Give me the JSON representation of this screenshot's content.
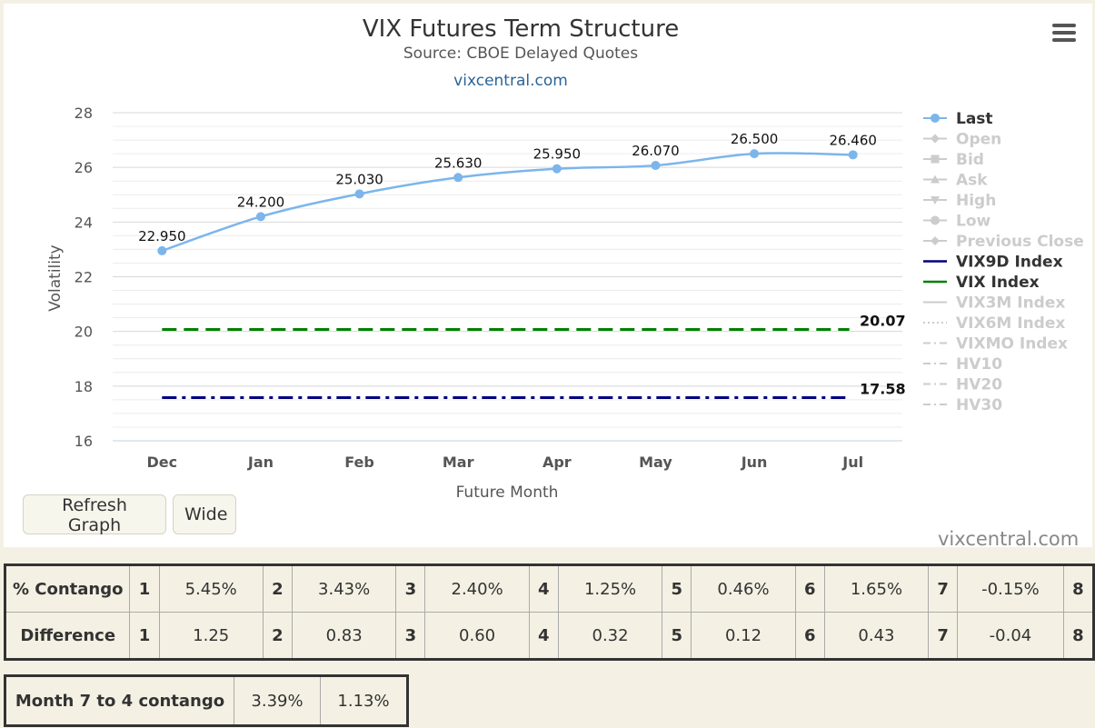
{
  "header": {
    "title": "VIX Futures Term Structure",
    "subtitle": "Source: CBOE Delayed Quotes",
    "site_link": "vixcentral.com"
  },
  "chart_data": {
    "type": "line",
    "title": "VIX Futures Term Structure",
    "subtitle": "Source: CBOE Delayed Quotes",
    "xlabel": "Future Month",
    "ylabel": "Volatility",
    "categories": [
      "Dec",
      "Jan",
      "Feb",
      "Mar",
      "Apr",
      "May",
      "Jun",
      "Jul"
    ],
    "ylim": [
      16,
      28
    ],
    "yticks": [
      16,
      18,
      20,
      22,
      24,
      26,
      28
    ],
    "grid": true,
    "legend_position": "right",
    "series": [
      {
        "name": "Last",
        "values": [
          22.95,
          24.2,
          25.03,
          25.63,
          25.95,
          26.07,
          26.5,
          26.46
        ],
        "labels": [
          "22.950",
          "24.200",
          "25.030",
          "25.630",
          "25.950",
          "26.070",
          "26.500",
          "26.460"
        ],
        "color": "#7cb5ec",
        "style": "spline",
        "visible": true
      },
      {
        "name": "VIX9D Index",
        "value": 17.58,
        "label": "17.58",
        "color": "#000080",
        "style": "dashdot",
        "visible": true
      },
      {
        "name": "VIX Index",
        "value": 20.07,
        "label": "20.07",
        "color": "#008000",
        "style": "dash",
        "visible": true
      }
    ],
    "legend": [
      {
        "name": "Last",
        "active": true,
        "symbol": "circle-line"
      },
      {
        "name": "Open",
        "active": false,
        "symbol": "diamond"
      },
      {
        "name": "Bid",
        "active": false,
        "symbol": "square"
      },
      {
        "name": "Ask",
        "active": false,
        "symbol": "triangle"
      },
      {
        "name": "High",
        "active": false,
        "symbol": "triangle-down"
      },
      {
        "name": "Low",
        "active": false,
        "symbol": "circle"
      },
      {
        "name": "Previous Close",
        "active": false,
        "symbol": "diamond"
      },
      {
        "name": "VIX9D Index",
        "active": true,
        "symbol": "line",
        "color": "#000080"
      },
      {
        "name": "VIX Index",
        "active": true,
        "symbol": "line",
        "color": "#008000"
      },
      {
        "name": "VIX3M Index",
        "active": false,
        "symbol": "line"
      },
      {
        "name": "VIX6M Index",
        "active": false,
        "symbol": "dotted"
      },
      {
        "name": "VIXMO Index",
        "active": false,
        "symbol": "dashdot"
      },
      {
        "name": "HV10",
        "active": false,
        "symbol": "dashdot"
      },
      {
        "name": "HV20",
        "active": false,
        "symbol": "dashdot"
      },
      {
        "name": "HV30",
        "active": false,
        "symbol": "dashdot"
      }
    ]
  },
  "controls": {
    "refresh_label": "Refresh Graph",
    "wide_label": "Wide"
  },
  "credit": "vixcentral.com",
  "contango_table": {
    "rows": [
      {
        "label": "% Contango",
        "cells": [
          {
            "n": "1",
            "v": "5.45%"
          },
          {
            "n": "2",
            "v": "3.43%"
          },
          {
            "n": "3",
            "v": "2.40%"
          },
          {
            "n": "4",
            "v": "1.25%"
          },
          {
            "n": "5",
            "v": "0.46%"
          },
          {
            "n": "6",
            "v": "1.65%"
          },
          {
            "n": "7",
            "v": "-0.15%"
          },
          {
            "n": "8",
            "v": ""
          }
        ]
      },
      {
        "label": "Difference",
        "cells": [
          {
            "n": "1",
            "v": "1.25"
          },
          {
            "n": "2",
            "v": "0.83"
          },
          {
            "n": "3",
            "v": "0.60"
          },
          {
            "n": "4",
            "v": "0.32"
          },
          {
            "n": "5",
            "v": "0.12"
          },
          {
            "n": "6",
            "v": "0.43"
          },
          {
            "n": "7",
            "v": "-0.04"
          },
          {
            "n": "8",
            "v": ""
          }
        ]
      }
    ]
  },
  "month_table": {
    "label": "Month 7 to 4 contango",
    "values": [
      "3.39%",
      "1.13%"
    ]
  },
  "colors": {
    "last": "#7cb5ec",
    "vix9d": "#000080",
    "vix": "#008000",
    "legend_inactive": "#cccccc",
    "link": "#2a6496"
  }
}
